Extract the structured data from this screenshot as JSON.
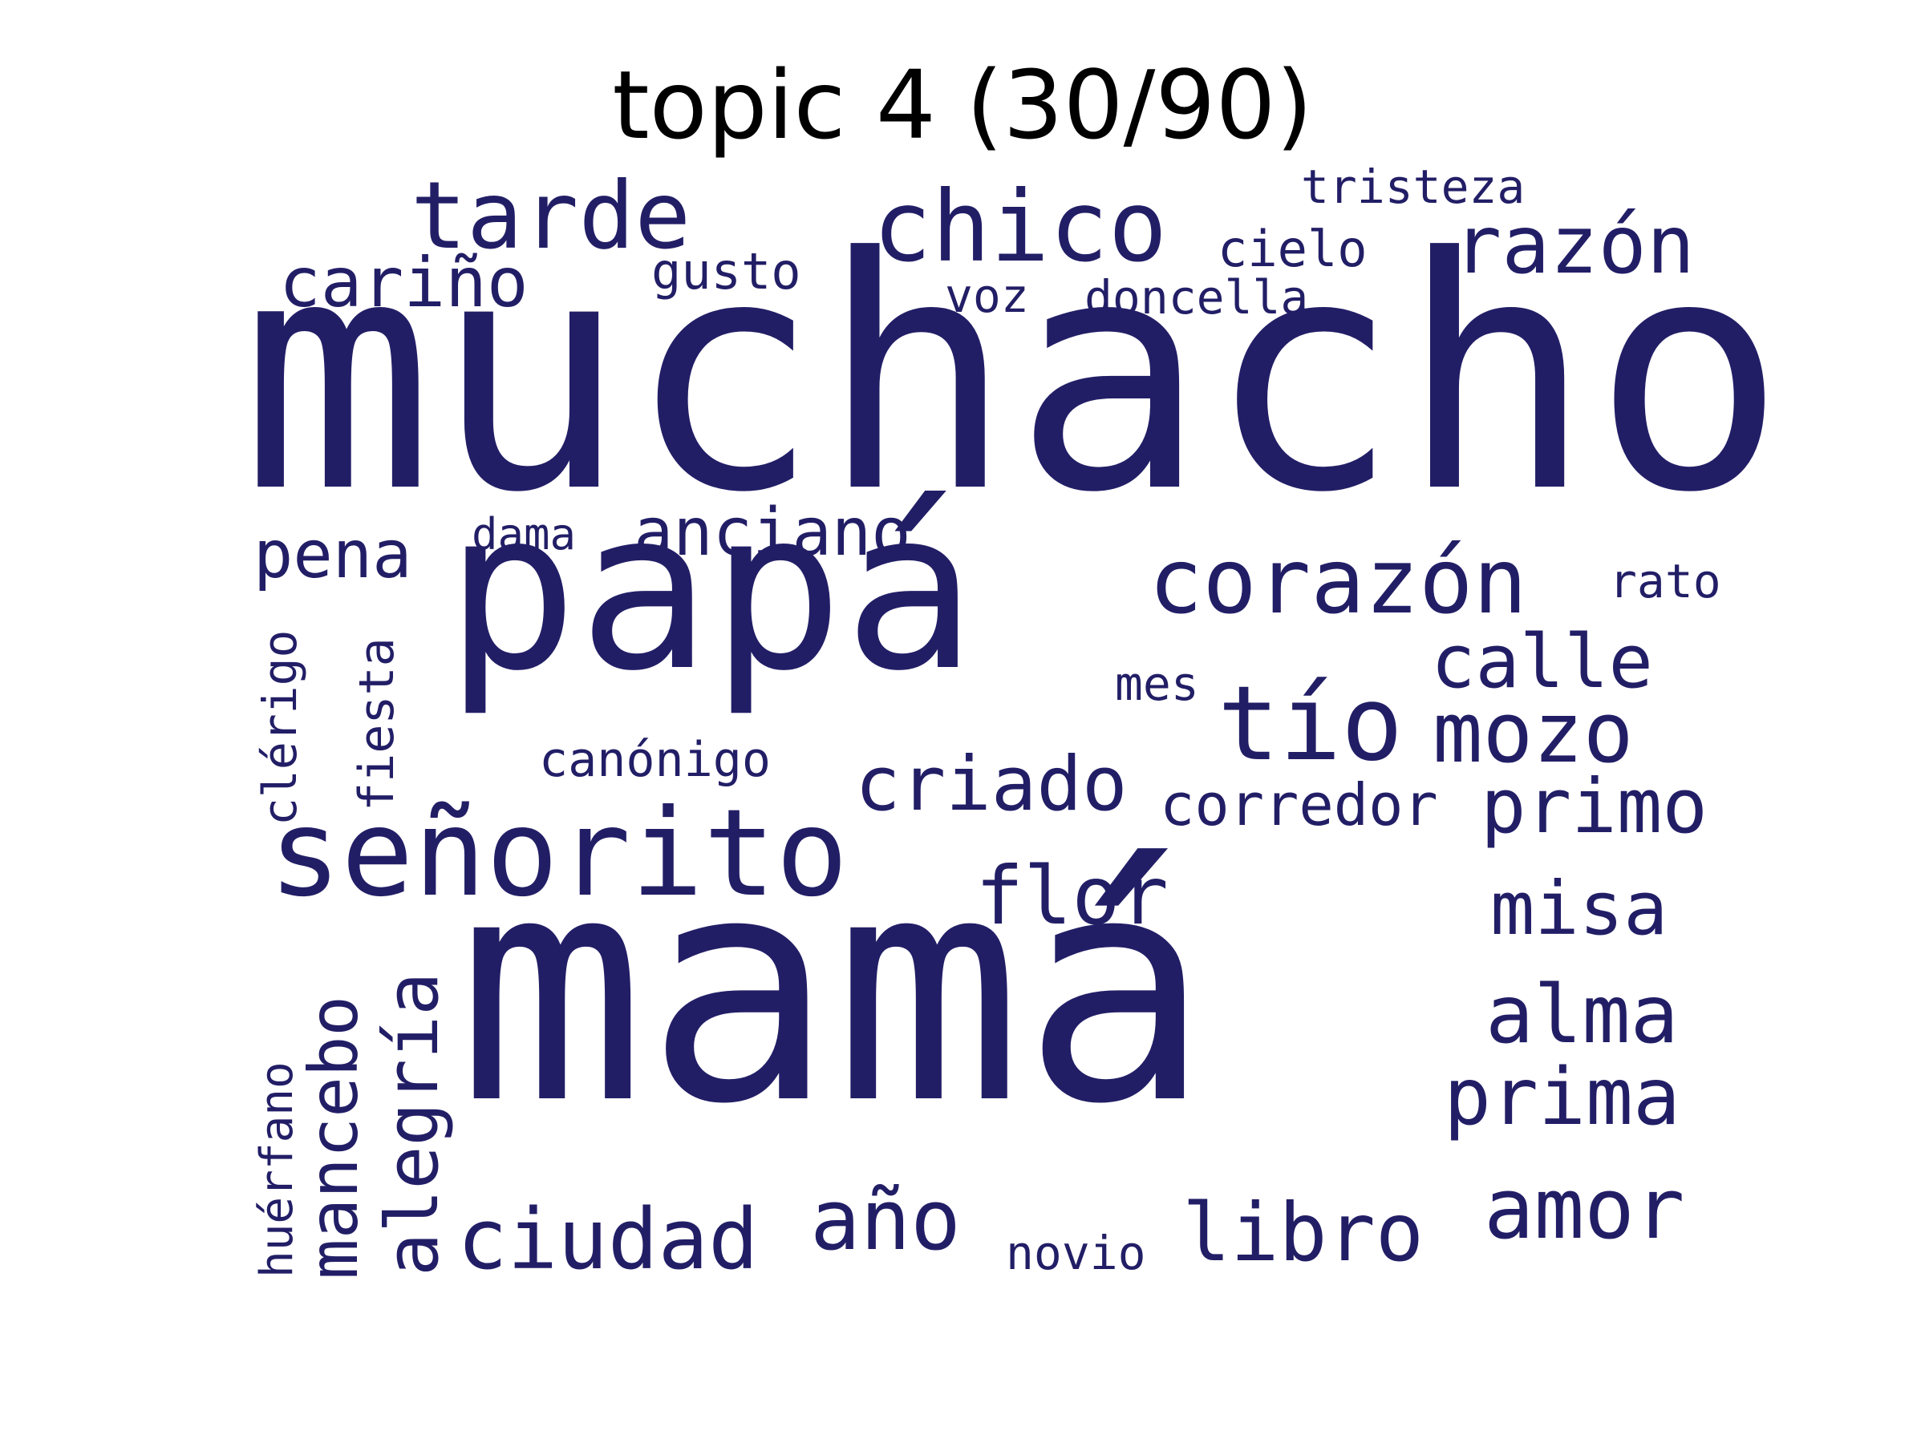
{
  "title": "topic 4 (30/90)",
  "word_color": "#221e66",
  "words": [
    "muchacho",
    "mamá",
    "papá",
    "señorito",
    "tarde",
    "chico",
    "razón",
    "cariño",
    "corazón",
    "tío",
    "mozo",
    "criado",
    "calle",
    "primo",
    "flor",
    "misa",
    "alma",
    "prima",
    "amor",
    "libro",
    "ciudad",
    "año",
    "anciano",
    "pena",
    "alegría",
    "mancebo",
    "gusto",
    "cielo",
    "doncella",
    "voz",
    "tristeza",
    "dama",
    "rato",
    "mes",
    "canónigo",
    "corredor",
    "clérigo",
    "fiesta",
    "huérfano",
    "novio"
  ]
}
